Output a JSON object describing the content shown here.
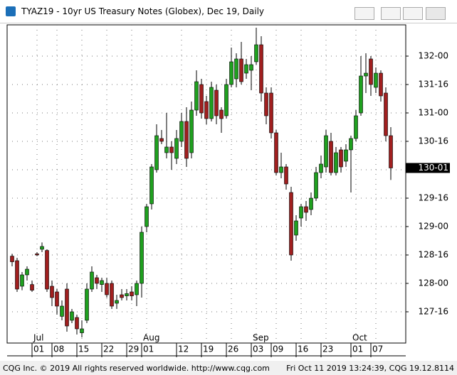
{
  "window": {
    "title": "TYAZ19 - 10yr US Treasury Notes (Globex), Dec 19, Daily"
  },
  "footer": {
    "left": "CQG Inc. © 2019 All rights reserved worldwide.  http://www.cqg.com",
    "right": "Fri Oct 11 2019 13:24:39, CQG 19.12.8114"
  },
  "chart_data": {
    "type": "candlestick",
    "categories": [
      null,
      null,
      null,
      null,
      null,
      "01",
      null,
      null,
      null,
      "08",
      null,
      null,
      null,
      null,
      "15",
      null,
      null,
      null,
      null,
      "22",
      null,
      null,
      null,
      null,
      "29",
      null,
      null,
      "01",
      null,
      null,
      null,
      null,
      null,
      null,
      "12",
      null,
      null,
      null,
      null,
      "19",
      null,
      null,
      null,
      null,
      "26",
      null,
      null,
      null,
      null,
      "03",
      null,
      null,
      null,
      "09",
      null,
      null,
      null,
      null,
      "16",
      null,
      null,
      null,
      null,
      "23",
      null,
      null,
      null,
      null,
      null,
      "01",
      null,
      null,
      null,
      "07",
      null,
      null,
      null
    ],
    "months": [
      null,
      null,
      null,
      null,
      null,
      "Jul",
      null,
      null,
      null,
      null,
      null,
      null,
      null,
      null,
      null,
      null,
      null,
      null,
      null,
      null,
      null,
      null,
      null,
      null,
      null,
      null,
      null,
      "Aug",
      null,
      null,
      null,
      null,
      null,
      null,
      null,
      null,
      null,
      null,
      null,
      null,
      null,
      null,
      null,
      null,
      null,
      null,
      null,
      null,
      null,
      "Sep",
      null,
      null,
      null,
      null,
      null,
      null,
      null,
      null,
      null,
      null,
      null,
      null,
      null,
      null,
      null,
      null,
      null,
      null,
      null,
      "Oct",
      null,
      null,
      null,
      null,
      null,
      null,
      null
    ],
    "open": [
      128.48,
      128.4,
      127.95,
      128.15,
      127.98,
      128.52,
      128.6,
      128.58,
      127.95,
      127.85,
      127.42,
      127.9,
      127.35,
      127.4,
      127.13,
      127.35,
      127.9,
      128.1,
      127.98,
      128.0,
      128.0,
      127.65,
      127.8,
      127.78,
      127.85,
      127.8,
      128.0,
      129.0,
      129.4,
      130.0,
      130.55,
      130.3,
      130.4,
      130.2,
      130.5,
      130.85,
      130.3,
      131.05,
      131.5,
      131.2,
      130.9,
      131.4,
      131.05,
      130.95,
      131.5,
      131.6,
      131.95,
      131.7,
      131.75,
      131.9,
      132.2,
      131.35,
      131.35,
      130.65,
      129.95,
      130.05,
      129.6,
      128.85,
      129.15,
      129.35,
      129.3,
      129.5,
      129.95,
      130.05,
      130.5,
      129.95,
      130.35,
      130.15,
      130.35,
      130.55,
      131.0,
      131.65,
      131.95,
      131.45,
      131.7,
      131.35,
      130.6
    ],
    "high": [
      128.52,
      128.45,
      128.2,
      128.3,
      128.05,
      128.55,
      128.72,
      128.6,
      128.05,
      127.9,
      127.7,
      128.0,
      127.55,
      127.45,
      127.35,
      128.0,
      128.3,
      128.15,
      128.1,
      128.1,
      128.05,
      127.8,
      127.9,
      127.9,
      127.95,
      128.05,
      129.0,
      129.4,
      130.1,
      130.8,
      130.7,
      131.0,
      130.5,
      130.7,
      131.0,
      131.1,
      131.2,
      131.75,
      131.6,
      131.3,
      131.55,
      131.5,
      131.1,
      131.6,
      132.15,
      132.05,
      132.25,
      131.95,
      132.0,
      132.5,
      132.35,
      131.45,
      131.45,
      130.7,
      130.3,
      130.1,
      129.7,
      129.2,
      129.4,
      129.45,
      129.6,
      130.05,
      130.25,
      130.7,
      130.65,
      130.4,
      130.4,
      130.45,
      130.6,
      131.05,
      132.0,
      132.05,
      132.0,
      131.8,
      131.75,
      131.45,
      130.75
    ],
    "low": [
      128.3,
      127.85,
      127.88,
      128.05,
      127.85,
      128.48,
      128.55,
      127.85,
      127.6,
      127.45,
      127.35,
      127.15,
      127.3,
      127.1,
      127.05,
      127.3,
      127.85,
      127.9,
      127.85,
      127.75,
      127.55,
      127.55,
      127.7,
      127.7,
      127.7,
      127.6,
      127.75,
      128.9,
      129.3,
      129.95,
      130.45,
      130.2,
      130.0,
      130.1,
      130.4,
      130.05,
      130.2,
      130.95,
      130.9,
      130.8,
      130.85,
      130.8,
      130.65,
      130.9,
      131.45,
      131.45,
      131.5,
      131.6,
      131.4,
      131.85,
      131.2,
      130.8,
      130.55,
      129.9,
      129.85,
      129.65,
      128.4,
      128.75,
      129.0,
      129.1,
      129.2,
      129.45,
      129.85,
      129.95,
      129.9,
      129.9,
      129.95,
      130.05,
      129.6,
      130.5,
      130.95,
      131.35,
      131.3,
      131.35,
      131.2,
      130.5,
      129.82
    ],
    "close": [
      128.38,
      127.9,
      128.15,
      128.25,
      127.88,
      128.5,
      128.65,
      127.9,
      127.75,
      127.6,
      127.6,
      127.25,
      127.5,
      127.2,
      127.2,
      127.9,
      128.2,
      128.0,
      128.05,
      127.8,
      127.6,
      127.7,
      127.75,
      127.82,
      127.78,
      128.0,
      128.9,
      129.35,
      130.05,
      130.6,
      130.5,
      130.4,
      130.3,
      130.55,
      130.85,
      130.2,
      131.05,
      131.55,
      131.0,
      130.9,
      131.45,
      130.95,
      130.9,
      131.5,
      131.9,
      131.95,
      131.55,
      131.85,
      131.85,
      132.2,
      131.35,
      130.95,
      130.65,
      129.95,
      130.05,
      129.75,
      128.5,
      129.1,
      129.35,
      129.25,
      129.5,
      129.95,
      130.1,
      130.6,
      129.95,
      130.3,
      130.05,
      130.35,
      130.55,
      130.95,
      131.65,
      131.7,
      131.5,
      131.7,
      131.3,
      130.6,
      130.03125
    ],
    "up_color": "#1fa01f",
    "down_color": "#a01f1f",
    "ylim": [
      126.95,
      132.55
    ],
    "yticks": [
      {
        "value": 127.5,
        "label": "127-16"
      },
      {
        "value": 128,
        "label": "128-00"
      },
      {
        "value": 128.5,
        "label": "128-16"
      },
      {
        "value": 129,
        "label": "129-00"
      },
      {
        "value": 129.5,
        "label": "129-16"
      },
      {
        "value": 130,
        "label": "130-00"
      },
      {
        "value": 130.5,
        "label": "130-16"
      },
      {
        "value": 131,
        "label": "131-00"
      },
      {
        "value": 131.5,
        "label": "131-16"
      },
      {
        "value": 132,
        "label": "132-00"
      }
    ],
    "last_price": {
      "value": 130.03125,
      "label": "130-01"
    },
    "grid": true
  }
}
